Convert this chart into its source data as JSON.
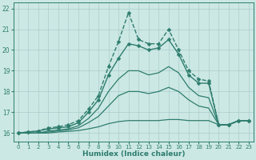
{
  "xlabel": "Humidex (Indice chaleur)",
  "ylabel": "",
  "bg_color": "#cce8e4",
  "grid_color": "#aacccc",
  "line_color": "#2e7d6e",
  "xlim": [
    -0.5,
    23.5
  ],
  "ylim": [
    15.6,
    22.3
  ],
  "xticks": [
    0,
    1,
    2,
    3,
    4,
    5,
    6,
    7,
    8,
    9,
    10,
    11,
    12,
    13,
    14,
    15,
    16,
    17,
    18,
    19,
    20,
    21,
    22,
    23
  ],
  "yticks": [
    16,
    17,
    18,
    19,
    20,
    21,
    22
  ],
  "lines": [
    {
      "x": [
        0,
        1,
        2,
        3,
        4,
        5,
        6,
        7,
        8,
        9,
        10,
        11,
        12,
        13,
        14,
        15,
        16,
        17,
        18,
        19,
        20,
        21,
        22,
        23
      ],
      "y": [
        16.0,
        16.05,
        16.1,
        16.25,
        16.3,
        16.4,
        16.6,
        17.15,
        17.8,
        19.2,
        20.4,
        21.8,
        20.5,
        20.3,
        20.3,
        21.0,
        20.0,
        19.0,
        18.6,
        18.5,
        16.4,
        16.4,
        16.6,
        16.6
      ],
      "marker": "D",
      "linewidth": 1.0,
      "markersize": 2.5,
      "linestyle": "--"
    },
    {
      "x": [
        0,
        1,
        2,
        3,
        4,
        5,
        6,
        7,
        8,
        9,
        10,
        11,
        12,
        13,
        14,
        15,
        16,
        17,
        18,
        19,
        20,
        21,
        22,
        23
      ],
      "y": [
        16.0,
        16.05,
        16.1,
        16.2,
        16.25,
        16.3,
        16.5,
        17.0,
        17.6,
        18.8,
        19.6,
        20.3,
        20.2,
        20.0,
        20.1,
        20.5,
        19.8,
        18.8,
        18.4,
        18.4,
        16.4,
        16.4,
        16.6,
        16.6
      ],
      "marker": "D",
      "linewidth": 1.0,
      "markersize": 2.5,
      "linestyle": "-"
    },
    {
      "x": [
        0,
        1,
        2,
        3,
        4,
        5,
        6,
        7,
        8,
        9,
        10,
        11,
        12,
        13,
        14,
        15,
        16,
        17,
        18,
        19,
        20,
        21,
        22,
        23
      ],
      "y": [
        16.0,
        16.0,
        16.0,
        16.1,
        16.15,
        16.2,
        16.35,
        16.7,
        17.2,
        18.0,
        18.6,
        19.0,
        19.0,
        18.8,
        18.9,
        19.2,
        18.9,
        18.2,
        17.8,
        17.7,
        16.4,
        16.4,
        16.6,
        16.6
      ],
      "marker": null,
      "linewidth": 0.9,
      "markersize": 0,
      "linestyle": "-"
    },
    {
      "x": [
        0,
        1,
        2,
        3,
        4,
        5,
        6,
        7,
        8,
        9,
        10,
        11,
        12,
        13,
        14,
        15,
        16,
        17,
        18,
        19,
        20,
        21,
        22,
        23
      ],
      "y": [
        16.0,
        16.0,
        16.0,
        16.05,
        16.1,
        16.15,
        16.25,
        16.5,
        16.8,
        17.3,
        17.8,
        18.0,
        18.0,
        17.9,
        18.0,
        18.2,
        18.0,
        17.6,
        17.3,
        17.2,
        16.4,
        16.4,
        16.6,
        16.6
      ],
      "marker": null,
      "linewidth": 0.9,
      "markersize": 0,
      "linestyle": "-"
    },
    {
      "x": [
        0,
        1,
        2,
        3,
        4,
        5,
        6,
        7,
        8,
        9,
        10,
        11,
        12,
        13,
        14,
        15,
        16,
        17,
        18,
        19,
        20,
        21,
        22,
        23
      ],
      "y": [
        16.0,
        16.0,
        16.0,
        16.0,
        16.05,
        16.08,
        16.12,
        16.2,
        16.3,
        16.45,
        16.55,
        16.6,
        16.6,
        16.6,
        16.6,
        16.65,
        16.65,
        16.6,
        16.6,
        16.6,
        16.4,
        16.4,
        16.6,
        16.6
      ],
      "marker": null,
      "linewidth": 0.9,
      "markersize": 0,
      "linestyle": "-"
    }
  ]
}
